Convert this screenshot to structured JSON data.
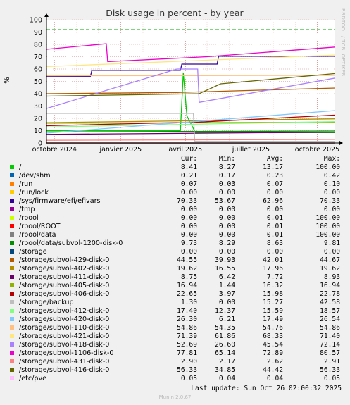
{
  "chart_data": {
    "type": "line",
    "title": "Disk usage in percent - by year",
    "ylabel": "%",
    "ylim": [
      0,
      100
    ],
    "yticks": [
      0,
      10,
      20,
      30,
      40,
      50,
      60,
      70,
      80,
      90,
      100
    ],
    "x_tick_labels": [
      "octobre 2024",
      "janvier 2025",
      "avril 2025",
      "juillet 2025",
      "octobre 2025"
    ],
    "x_tick_dates": [
      "2024-10-01",
      "2025-01-01",
      "2025-04-01",
      "2025-07-01",
      "2025-10-01"
    ],
    "x_range": [
      "2024-09-20",
      "2025-10-26"
    ],
    "warning_line": 92,
    "grid": true,
    "series": [
      {
        "name": "/",
        "color": "#00cc00",
        "points": [
          [
            "2024-09-20",
            10
          ],
          [
            "2025-03-25",
            10
          ],
          [
            "2025-03-29",
            57
          ],
          [
            "2025-04-03",
            22
          ],
          [
            "2025-04-15",
            8.41
          ],
          [
            "2025-10-26",
            8.41
          ]
        ]
      },
      {
        "name": "/dev/shm",
        "color": "#0066b3",
        "points": [
          [
            "2024-09-20",
            0.2
          ],
          [
            "2025-10-26",
            0.21
          ]
        ]
      },
      {
        "name": "/run",
        "color": "#ff8000",
        "points": [
          [
            "2024-09-20",
            0.1
          ],
          [
            "2025-10-26",
            0.07
          ]
        ]
      },
      {
        "name": "/run/lock",
        "color": "#ffcc00",
        "points": [
          [
            "2024-09-20",
            0
          ],
          [
            "2025-10-26",
            0
          ]
        ]
      },
      {
        "name": "/sys/firmware/efi/efivars",
        "color": "#330099",
        "points": [
          [
            "2024-09-20",
            54
          ],
          [
            "2024-11-20",
            54
          ],
          [
            "2024-11-22",
            59
          ],
          [
            "2025-03-25",
            59
          ],
          [
            "2025-03-27",
            64
          ],
          [
            "2025-05-15",
            64
          ],
          [
            "2025-05-17",
            70.33
          ],
          [
            "2025-10-26",
            70.33
          ]
        ]
      },
      {
        "name": "/tmp",
        "color": "#990099",
        "points": [
          [
            "2024-09-20",
            0
          ],
          [
            "2025-10-26",
            0
          ]
        ]
      },
      {
        "name": "/rpool",
        "color": "#ccff00",
        "points": [
          [
            "2024-09-20",
            0
          ],
          [
            "2025-10-26",
            0
          ]
        ]
      },
      {
        "name": "/rpool/ROOT",
        "color": "#ff0000",
        "points": [
          [
            "2024-09-20",
            0
          ],
          [
            "2025-10-26",
            0
          ]
        ]
      },
      {
        "name": "/rpool/data",
        "color": "#808080",
        "points": [
          [
            "2024-09-20",
            0
          ],
          [
            "2025-10-26",
            0
          ]
        ]
      },
      {
        "name": "/rpool/data/subvol-1200-disk-0",
        "color": "#008f00",
        "points": [
          [
            "2024-09-20",
            9
          ],
          [
            "2025-10-26",
            9.73
          ]
        ]
      },
      {
        "name": "/storage",
        "color": "#00487d",
        "points": [
          [
            "2024-09-20",
            0
          ],
          [
            "2025-10-26",
            0
          ]
        ]
      },
      {
        "name": "/storage/subvol-429-disk-0",
        "color": "#b35a00",
        "points": [
          [
            "2024-09-20",
            40
          ],
          [
            "2025-03-20",
            41
          ],
          [
            "2025-10-26",
            44.55
          ]
        ]
      },
      {
        "name": "/storage/subvol-402-disk-0",
        "color": "#b38f00",
        "points": [
          [
            "2024-09-20",
            16.5
          ],
          [
            "2025-10-26",
            19.62
          ]
        ]
      },
      {
        "name": "/storage/subvol-411-disk-0",
        "color": "#6b006b",
        "points": [
          [
            "2024-09-20",
            7
          ],
          [
            "2025-10-26",
            8.75
          ]
        ]
      },
      {
        "name": "/storage/subvol-405-disk-0",
        "color": "#8fb300",
        "points": [
          [
            "2024-09-20",
            16
          ],
          [
            "2025-10-26",
            16.94
          ]
        ]
      },
      {
        "name": "/storage/subvol-406-disk-0",
        "color": "#b30000",
        "points": [
          [
            "2024-09-20",
            14
          ],
          [
            "2025-04-20",
            17
          ],
          [
            "2025-10-26",
            22.65
          ]
        ]
      },
      {
        "name": "/storage/backup",
        "color": "#bebebe",
        "points": [
          [
            "2024-09-20",
            24
          ],
          [
            "2025-04-12",
            24
          ],
          [
            "2025-04-14",
            1.3
          ],
          [
            "2025-10-26",
            1.3
          ]
        ]
      },
      {
        "name": "/storage/subvol-412-disk-0",
        "color": "#80ff80",
        "points": [
          [
            "2024-09-20",
            13
          ],
          [
            "2025-10-26",
            17.4
          ]
        ]
      },
      {
        "name": "/storage/subvol-420-disk-0",
        "color": "#80c9ff",
        "points": [
          [
            "2024-09-20",
            8
          ],
          [
            "2025-10-26",
            26.3
          ]
        ]
      },
      {
        "name": "/storage/subvol-110-disk-0",
        "color": "#ffc080",
        "points": [
          [
            "2024-09-20",
            54.5
          ],
          [
            "2025-10-26",
            54.86
          ]
        ]
      },
      {
        "name": "/storage/subvol-421-disk-0",
        "color": "#ffe680",
        "points": [
          [
            "2024-09-20",
            62
          ],
          [
            "2025-10-26",
            71.39
          ]
        ]
      },
      {
        "name": "/storage/subvol-418-disk-0",
        "color": "#aa80ff",
        "points": [
          [
            "2024-09-20",
            28
          ],
          [
            "2025-03-20",
            60
          ],
          [
            "2025-04-18",
            60
          ],
          [
            "2025-04-20",
            33
          ],
          [
            "2025-10-26",
            52.69
          ]
        ]
      },
      {
        "name": "/storage/subvol-1106-disk-0",
        "color": "#ee00cc",
        "points": [
          [
            "2024-09-20",
            76
          ],
          [
            "2024-12-12",
            80.5
          ],
          [
            "2024-12-14",
            66
          ],
          [
            "2025-05-01",
            70
          ],
          [
            "2025-10-26",
            77.81
          ]
        ]
      },
      {
        "name": "/storage/subvol-431-disk-0",
        "color": "#ff8080",
        "points": [
          [
            "2024-09-20",
            2.2
          ],
          [
            "2025-10-26",
            2.9
          ]
        ]
      },
      {
        "name": "/storage/subvol-416-disk-0",
        "color": "#666600",
        "points": [
          [
            "2024-09-20",
            38
          ],
          [
            "2025-04-20",
            40
          ],
          [
            "2025-05-20",
            48
          ],
          [
            "2025-10-26",
            56.33
          ]
        ]
      },
      {
        "name": "/etc/pve",
        "color": "#ffbfff",
        "points": [
          [
            "2024-09-20",
            0.04
          ],
          [
            "2025-10-26",
            0.05
          ]
        ]
      }
    ]
  },
  "legend": {
    "headers": {
      "cur": "Cur:",
      "min": "Min:",
      "avg": "Avg:",
      "max": "Max:"
    },
    "rows": [
      {
        "name": "/",
        "color": "#00cc00",
        "cur": "8.41",
        "min": "8.27",
        "avg": "13.17",
        "max": "100.00"
      },
      {
        "name": "/dev/shm",
        "color": "#0066b3",
        "cur": "0.21",
        "min": "0.17",
        "avg": "0.23",
        "max": "0.42"
      },
      {
        "name": "/run",
        "color": "#ff8000",
        "cur": "0.07",
        "min": "0.03",
        "avg": "0.07",
        "max": "0.10"
      },
      {
        "name": "/run/lock",
        "color": "#ffcc00",
        "cur": "0.00",
        "min": "0.00",
        "avg": "0.00",
        "max": "0.00"
      },
      {
        "name": "/sys/firmware/efi/efivars",
        "color": "#330099",
        "cur": "70.33",
        "min": "53.67",
        "avg": "62.96",
        "max": "70.33"
      },
      {
        "name": "/tmp",
        "color": "#990099",
        "cur": "0.00",
        "min": "0.00",
        "avg": "0.00",
        "max": "0.00"
      },
      {
        "name": "/rpool",
        "color": "#ccff00",
        "cur": "0.00",
        "min": "0.00",
        "avg": "0.01",
        "max": "100.00"
      },
      {
        "name": "/rpool/ROOT",
        "color": "#ff0000",
        "cur": "0.00",
        "min": "0.00",
        "avg": "0.01",
        "max": "100.00"
      },
      {
        "name": "/rpool/data",
        "color": "#808080",
        "cur": "0.00",
        "min": "0.00",
        "avg": "0.01",
        "max": "100.00"
      },
      {
        "name": "/rpool/data/subvol-1200-disk-0",
        "color": "#008f00",
        "cur": "9.73",
        "min": "8.29",
        "avg": "8.63",
        "max": "9.81"
      },
      {
        "name": "/storage",
        "color": "#00487d",
        "cur": "0.00",
        "min": "0.00",
        "avg": "0.00",
        "max": "0.00"
      },
      {
        "name": "/storage/subvol-429-disk-0",
        "color": "#b35a00",
        "cur": "44.55",
        "min": "39.93",
        "avg": "42.01",
        "max": "44.67"
      },
      {
        "name": "/storage/subvol-402-disk-0",
        "color": "#b38f00",
        "cur": "19.62",
        "min": "16.55",
        "avg": "17.96",
        "max": "19.62"
      },
      {
        "name": "/storage/subvol-411-disk-0",
        "color": "#6b006b",
        "cur": "8.75",
        "min": "6.42",
        "avg": "7.72",
        "max": "8.93"
      },
      {
        "name": "/storage/subvol-405-disk-0",
        "color": "#8fb300",
        "cur": "16.94",
        "min": "1.44",
        "avg": "16.32",
        "max": "16.94"
      },
      {
        "name": "/storage/subvol-406-disk-0",
        "color": "#b30000",
        "cur": "22.65",
        "min": "3.97",
        "avg": "15.98",
        "max": "22.78"
      },
      {
        "name": "/storage/backup",
        "color": "#bebebe",
        "cur": "1.30",
        "min": "0.00",
        "avg": "15.27",
        "max": "42.58"
      },
      {
        "name": "/storage/subvol-412-disk-0",
        "color": "#80ff80",
        "cur": "17.40",
        "min": "12.37",
        "avg": "15.59",
        "max": "18.57"
      },
      {
        "name": "/storage/subvol-420-disk-0",
        "color": "#80c9ff",
        "cur": "26.30",
        "min": "6.21",
        "avg": "17.49",
        "max": "26.54"
      },
      {
        "name": "/storage/subvol-110-disk-0",
        "color": "#ffc080",
        "cur": "54.86",
        "min": "54.35",
        "avg": "54.76",
        "max": "54.86"
      },
      {
        "name": "/storage/subvol-421-disk-0",
        "color": "#ffe680",
        "cur": "71.39",
        "min": "61.86",
        "avg": "68.33",
        "max": "71.40"
      },
      {
        "name": "/storage/subvol-418-disk-0",
        "color": "#aa80ff",
        "cur": "52.69",
        "min": "26.60",
        "avg": "45.54",
        "max": "72.14"
      },
      {
        "name": "/storage/subvol-1106-disk-0",
        "color": "#ee00cc",
        "cur": "77.81",
        "min": "65.14",
        "avg": "72.89",
        "max": "80.57"
      },
      {
        "name": "/storage/subvol-431-disk-0",
        "color": "#ff8080",
        "cur": "2.90",
        "min": "2.17",
        "avg": "2.62",
        "max": "2.91"
      },
      {
        "name": "/storage/subvol-416-disk-0",
        "color": "#666600",
        "cur": "56.33",
        "min": "34.85",
        "avg": "44.42",
        "max": "56.33"
      },
      {
        "name": "/etc/pve",
        "color": "#ffbfff",
        "cur": "0.05",
        "min": "0.04",
        "avg": "0.04",
        "max": "0.05"
      }
    ]
  },
  "footer": {
    "last_update": "Last update: Sun Oct 26 02:00:32 2025",
    "munin": "Munin 2.0.67",
    "watermark": "RRDTOOL / TOBI OETIKER"
  }
}
